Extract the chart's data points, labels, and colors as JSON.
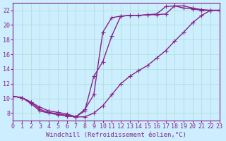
{
  "background_color": "#cceeff",
  "grid_color": "#aaddcc",
  "line_color": "#882288",
  "marker": "+",
  "marker_size": 4,
  "line_width": 1.0,
  "xlabel": "Windchill (Refroidissement éolien,°C)",
  "xlabel_fontsize": 6.5,
  "tick_fontsize": 6,
  "xlim": [
    0,
    23
  ],
  "ylim": [
    7,
    23
  ],
  "yticks": [
    8,
    10,
    12,
    14,
    16,
    18,
    20,
    22
  ],
  "xticks": [
    0,
    1,
    2,
    3,
    4,
    5,
    6,
    7,
    8,
    9,
    10,
    11,
    12,
    13,
    14,
    15,
    16,
    17,
    18,
    19,
    20,
    21,
    22,
    23
  ],
  "curves": [
    {
      "x": [
        0,
        1,
        2,
        3,
        4,
        5,
        6,
        7,
        8,
        9,
        10,
        11,
        12,
        13,
        14,
        15,
        16,
        17,
        18,
        19,
        20,
        21,
        22,
        23
      ],
      "y": [
        10.3,
        10.1,
        9.5,
        8.5,
        8.1,
        7.9,
        7.7,
        7.5,
        8.5,
        10.5,
        19.0,
        21.0,
        21.2,
        21.3,
        21.3,
        21.4,
        21.4,
        21.5,
        22.6,
        22.6,
        22.3,
        22.1,
        22.0,
        22.0
      ]
    },
    {
      "x": [
        0,
        1,
        2,
        3,
        4,
        5,
        6,
        7,
        8,
        9,
        10,
        11,
        12,
        13,
        14,
        15,
        16,
        17,
        18,
        19,
        20,
        21,
        22,
        23
      ],
      "y": [
        10.3,
        10.1,
        9.5,
        8.8,
        8.3,
        8.1,
        7.9,
        7.5,
        7.5,
        8.0,
        9.0,
        10.5,
        12.0,
        13.0,
        13.8,
        14.5,
        15.5,
        16.5,
        17.8,
        19.0,
        20.3,
        21.3,
        22.0,
        22.0
      ]
    },
    {
      "x": [
        0,
        1,
        2,
        3,
        4,
        5,
        6,
        7,
        8,
        9,
        10,
        11,
        12,
        13,
        14,
        15,
        16,
        17,
        18,
        19,
        20,
        21,
        22,
        23
      ],
      "y": [
        10.3,
        10.1,
        9.3,
        8.3,
        8.0,
        7.8,
        7.6,
        7.5,
        8.3,
        13.0,
        15.0,
        18.5,
        21.2,
        21.3,
        21.3,
        21.4,
        21.5,
        22.5,
        22.6,
        22.3,
        22.2,
        22.0,
        22.0,
        22.0
      ]
    }
  ]
}
